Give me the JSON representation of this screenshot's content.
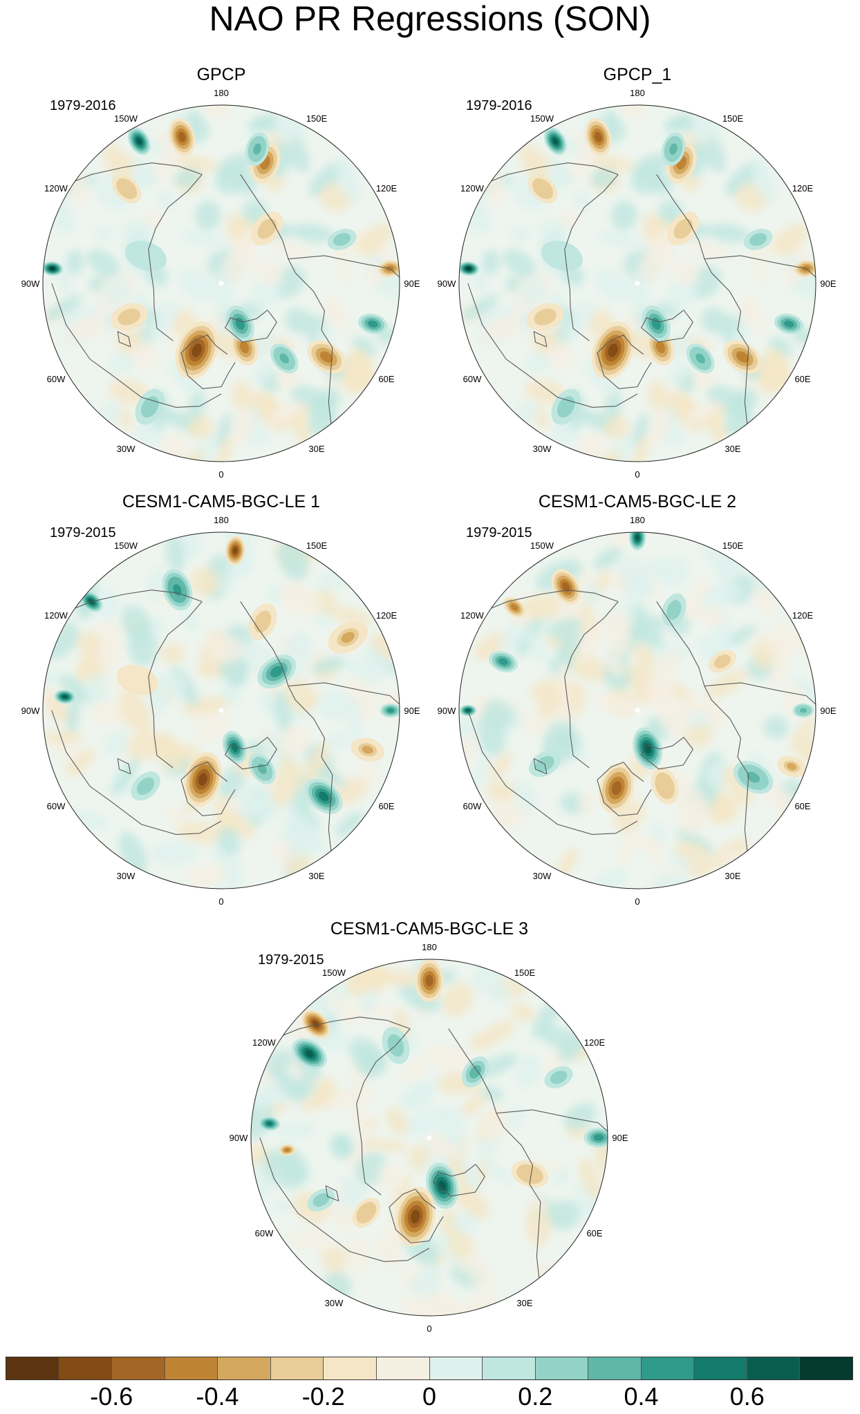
{
  "title": "NAO PR Regressions (SON)",
  "panels": [
    {
      "title": "GPCP",
      "period": "1979-2016"
    },
    {
      "title": "GPCP_1",
      "period": "1979-2016"
    },
    {
      "title": "CESM1-CAM5-BGC-LE 1",
      "period": "1979-2015"
    },
    {
      "title": "CESM1-CAM5-BGC-LE 2",
      "period": "1979-2015"
    },
    {
      "title": "CESM1-CAM5-BGC-LE 3",
      "period": "1979-2015"
    }
  ],
  "longitude_labels": [
    "180",
    "150E",
    "120E",
    "90E",
    "60E",
    "30E",
    "0",
    "30W",
    "60W",
    "90W",
    "120W",
    "150W"
  ],
  "colorbar": {
    "colors": [
      "#5c3510",
      "#834b15",
      "#a36624",
      "#bf8433",
      "#d5a85f",
      "#e8cd98",
      "#f4e6c6",
      "#f5efe2",
      "#def1ee",
      "#bfe6df",
      "#93d3c7",
      "#5fb7a8",
      "#2f9a8a",
      "#137b6b",
      "#0a5e50",
      "#043a30"
    ],
    "tick_labels": [
      "-0.6",
      "-0.4",
      "-0.2",
      "0",
      "0.2",
      "0.4",
      "0.6"
    ]
  }
}
